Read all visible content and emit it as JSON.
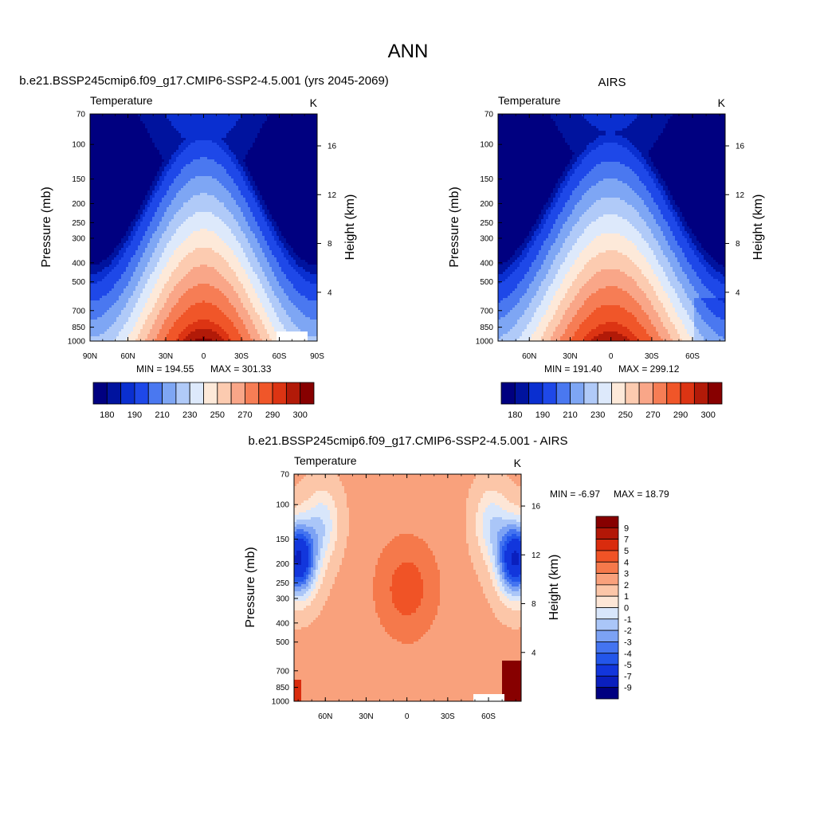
{
  "figure": {
    "title": "ANN"
  },
  "colors": {
    "temperature_levels": [
      "#000080",
      "#00139e",
      "#0a2fd0",
      "#1e48e8",
      "#4a78f0",
      "#7ea6f4",
      "#b0caf8",
      "#dde9fb",
      "#fde9d9",
      "#fccbb0",
      "#f9a688",
      "#f67d55",
      "#f05629",
      "#dc3413",
      "#b21a08",
      "#870000"
    ],
    "difference_levels": [
      "#000080",
      "#0a1fbe",
      "#1236dc",
      "#2356ea",
      "#4474f0",
      "#7ca2f4",
      "#aac6f8",
      "#d8e6fb",
      "#fde6d6",
      "#fcc6a8",
      "#f9a17c",
      "#f5794b",
      "#f05326",
      "#d92c0e",
      "#b31707",
      "#870000"
    ]
  },
  "chart_data": [
    {
      "type": "heatmap",
      "title": "b.e21.BSSP245cmip6.f09_g17.CMIP6-SSP2-4.5.001 (yrs 2045-2069)",
      "left_label": "Temperature",
      "right_label": "K",
      "xlabel": "",
      "ylabel": "Pressure (mb)",
      "ylabel_right": "Height (km)",
      "x_ticks": [
        "90N",
        "60N",
        "30N",
        "0",
        "30S",
        "60S",
        "90S"
      ],
      "y_ticks": [
        "70",
        "100",
        "150",
        "200",
        "250",
        "300",
        "400",
        "500",
        "700",
        "850",
        "1000"
      ],
      "right_ticks": [
        "16",
        "12",
        "8",
        "4"
      ],
      "min_label": "MIN = 194.55",
      "max_label": "MAX = 301.33",
      "colorbar_labels": [
        "180",
        "190",
        "210",
        "230",
        "250",
        "270",
        "290",
        "300"
      ]
    },
    {
      "type": "heatmap",
      "title": "AIRS",
      "left_label": "Temperature",
      "right_label": "K",
      "xlabel": "",
      "ylabel": "Pressure (mb)",
      "ylabel_right": "Height (km)",
      "x_ticks": [
        "60N",
        "30N",
        "0",
        "30S",
        "60S"
      ],
      "y_ticks": [
        "70",
        "100",
        "150",
        "200",
        "250",
        "300",
        "400",
        "500",
        "700",
        "850",
        "1000"
      ],
      "right_ticks": [
        "16",
        "12",
        "8",
        "4"
      ],
      "min_label": "MIN = 191.40",
      "max_label": "MAX = 299.12",
      "colorbar_labels": [
        "180",
        "190",
        "210",
        "230",
        "250",
        "270",
        "290",
        "300"
      ]
    },
    {
      "type": "heatmap",
      "title": "b.e21.BSSP245cmip6.f09_g17.CMIP6-SSP2-4.5.001 - AIRS",
      "left_label": "Temperature",
      "right_label": "K",
      "xlabel": "",
      "ylabel": "Pressure (mb)",
      "ylabel_right": "Height (km)",
      "x_ticks": [
        "60N",
        "30N",
        "0",
        "30S",
        "60S"
      ],
      "y_ticks": [
        "70",
        "100",
        "150",
        "200",
        "250",
        "300",
        "400",
        "500",
        "700",
        "850",
        "1000"
      ],
      "right_ticks": [
        "16",
        "12",
        "8",
        "4"
      ],
      "min_label": "MIN =  -6.97",
      "max_label": "MAX =  18.79",
      "colorbar_labels": [
        "9",
        "7",
        "5",
        "4",
        "3",
        "2",
        "1",
        "0",
        "-1",
        "-2",
        "-3",
        "-4",
        "-5",
        "-7",
        "-9"
      ]
    }
  ]
}
